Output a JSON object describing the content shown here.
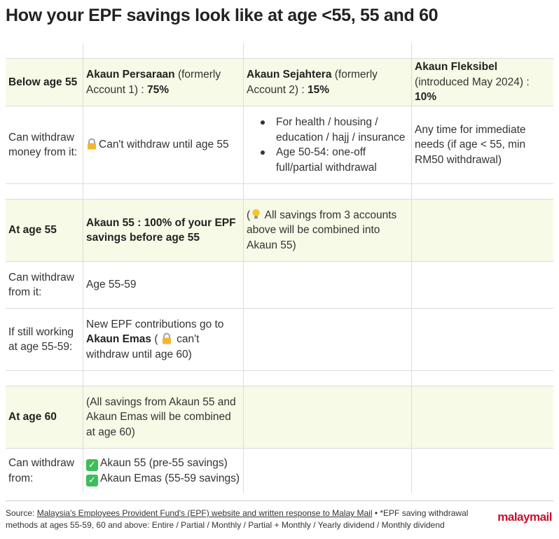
{
  "title": "How your EPF savings look like at age <55, 55 and 60",
  "colors": {
    "highlight_row": "#f7fae6",
    "logo": "#c8102e",
    "check": "#3cbf5a"
  },
  "header": {
    "label": "Below age 55",
    "col1": {
      "bold": "Akaun Persaraan",
      "rest": " (formerly Account 1) : ",
      "pct": "75%"
    },
    "col2": {
      "bold": "Akaun Sejahtera",
      "rest": " (formerly Account 2) : ",
      "pct": "15%"
    },
    "col3": {
      "bold": "Akaun Fleksibel",
      "rest": " (introduced May 2024) : ",
      "pct": "10%"
    }
  },
  "below55": {
    "label": "Can withdraw money from it:",
    "col1": "Can't withdraw until age 55",
    "col2_items": [
      "For health / housing / education / hajj / insurance",
      "Age 50-54: one-off full/partial withdrawal"
    ],
    "col3": "Any time for immediate needs (if age < 55, min RM50 withdrawal)"
  },
  "at55": {
    "label": "At age 55",
    "col1": "Akaun 55 : 100% of your EPF savings before age 55",
    "col2_pre": "(",
    "col2_text": " All savings from 3 accounts above will be combined into Akaun 55)",
    "withdraw_label": "Can withdraw from it:",
    "withdraw_value": "Age 55-59",
    "working_label": "If still working at age 55-59:",
    "working_text1": "New EPF contributions go to ",
    "working_bold": "Akaun Emas",
    "working_text2": " ( ",
    "working_text3": " can't withdraw until age 60)"
  },
  "at60": {
    "label": "At age 60",
    "col1": "(All savings from Akaun 55 and Akaun Emas will be combined at age 60)",
    "withdraw_label": "Can withdraw from:",
    "items": [
      "Akaun 55 (pre-55 savings)",
      "Akaun Emas (55-59 savings)"
    ]
  },
  "footer": {
    "prefix": "Source: ",
    "link": "Malaysia's Employees Provident Fund's (EPF) website and written response to Malay Mail",
    "rest": " • *EPF saving withdrawal methods at ages 55-59, 60 and above: Entire / Partial / Monthly / Partial + Monthly / Yearly dividend / Monthly dividend",
    "logo": "malaymail"
  },
  "icons": {
    "lock": "lock-icon",
    "bulb": "lightbulb-icon",
    "check": "check-icon"
  }
}
